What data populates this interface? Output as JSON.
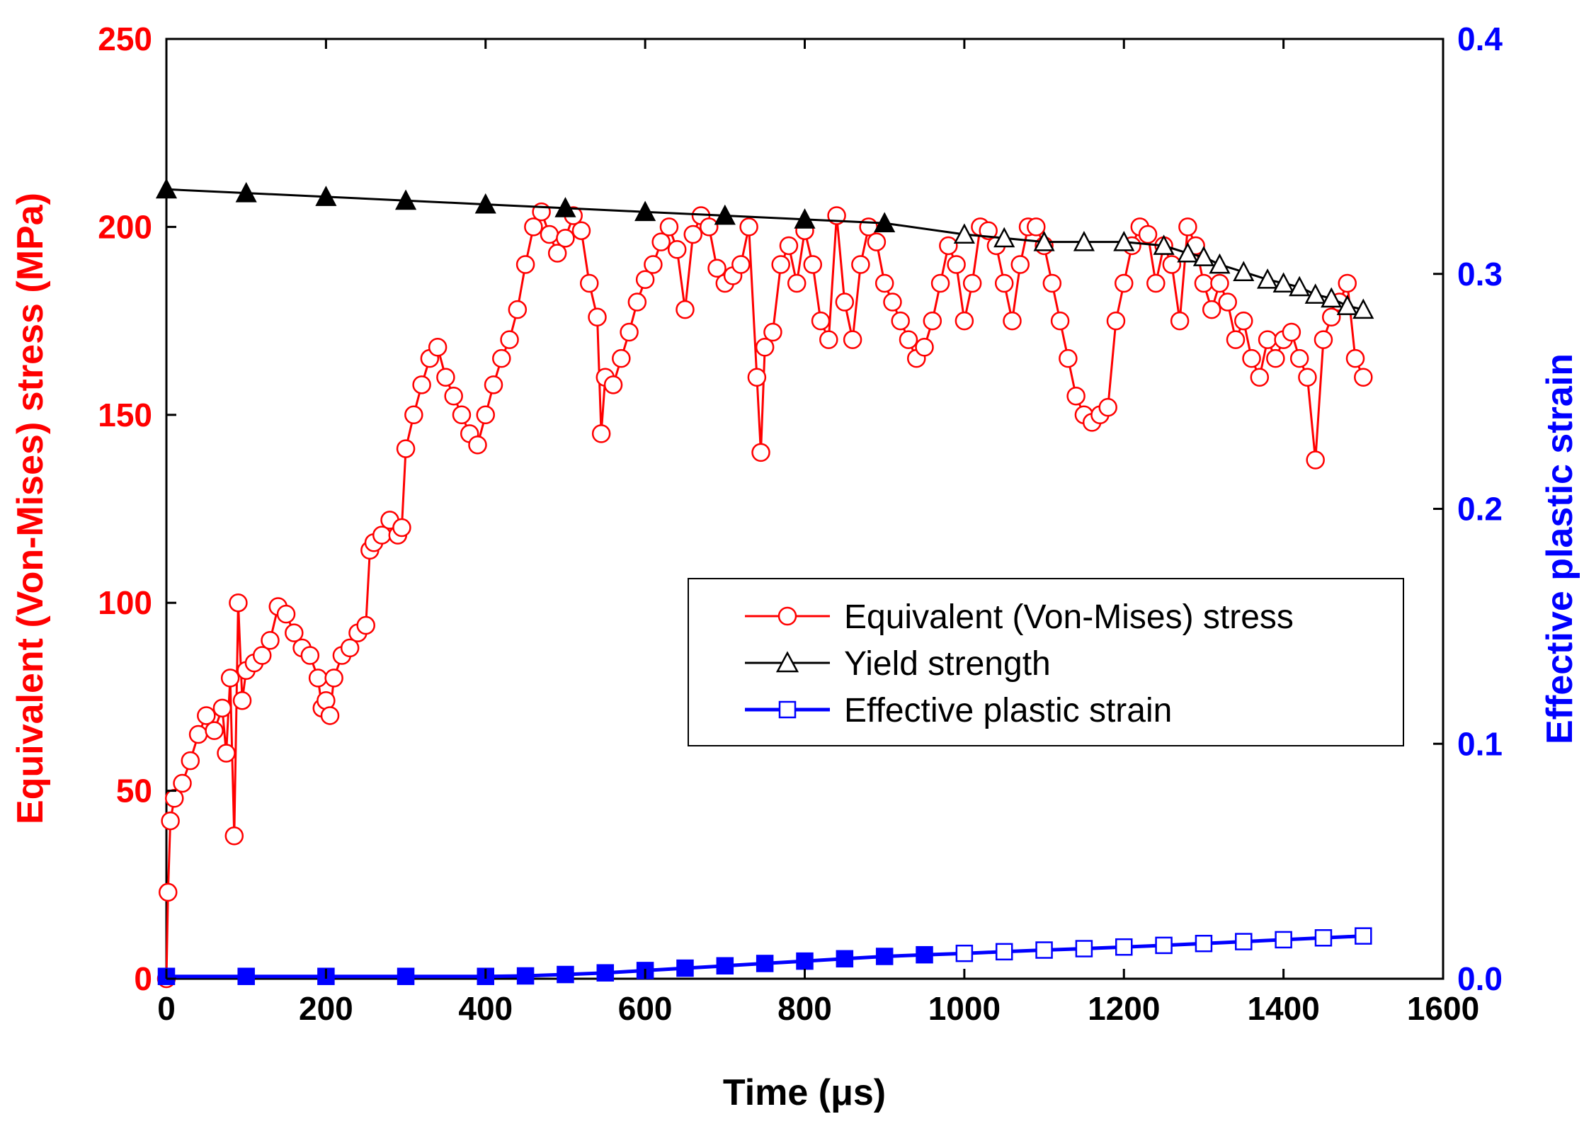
{
  "chart_data": {
    "type": "line",
    "title": "",
    "xlabel": "Time (μs)",
    "ylabel": "Equivalent (Von-Mises) stress (MPa)",
    "y2label": "Effective plastic strain",
    "xlim": [
      0,
      1600
    ],
    "ylim": [
      0,
      250
    ],
    "y2lim": [
      0,
      0.4
    ],
    "x_ticks": [
      "0",
      "200",
      "400",
      "600",
      "800",
      "1000",
      "1200",
      "1400",
      "1600"
    ],
    "y_ticks": [
      "0",
      "50",
      "100",
      "150",
      "200",
      "250"
    ],
    "y2_ticks": [
      "0.0",
      "0.1",
      "0.2",
      "0.3",
      "0.4"
    ],
    "legend_position": "center-right",
    "colors": {
      "stress": "#ff0000",
      "yield": "#000000",
      "strain": "#0000ff",
      "left_axis": "#ff0000",
      "right_axis": "#0000ff"
    },
    "series": [
      {
        "name": "Equivalent (Von-Mises) stress",
        "axis": "left",
        "marker": "circle",
        "x": [
          0,
          2,
          5,
          10,
          20,
          30,
          40,
          50,
          60,
          70,
          75,
          80,
          85,
          90,
          95,
          100,
          110,
          120,
          130,
          140,
          150,
          160,
          170,
          180,
          190,
          195,
          200,
          205,
          210,
          220,
          230,
          240,
          250,
          255,
          260,
          270,
          280,
          290,
          295,
          300,
          310,
          320,
          330,
          340,
          350,
          360,
          370,
          380,
          390,
          400,
          410,
          420,
          430,
          440,
          450,
          460,
          470,
          480,
          490,
          500,
          510,
          520,
          530,
          540,
          545,
          550,
          560,
          570,
          580,
          590,
          600,
          610,
          620,
          630,
          640,
          650,
          660,
          670,
          680,
          690,
          700,
          710,
          720,
          730,
          740,
          745,
          750,
          760,
          770,
          780,
          790,
          800,
          810,
          820,
          830,
          840,
          850,
          860,
          870,
          880,
          890,
          900,
          910,
          920,
          930,
          940,
          950,
          960,
          970,
          980,
          990,
          1000,
          1010,
          1020,
          1030,
          1040,
          1050,
          1060,
          1070,
          1080,
          1090,
          1100,
          1110,
          1120,
          1130,
          1140,
          1150,
          1160,
          1170,
          1180,
          1190,
          1200,
          1210,
          1220,
          1230,
          1240,
          1250,
          1260,
          1270,
          1280,
          1290,
          1300,
          1310,
          1320,
          1330,
          1340,
          1350,
          1360,
          1370,
          1380,
          1390,
          1400,
          1410,
          1420,
          1430,
          1440,
          1450,
          1460,
          1470,
          1480,
          1490,
          1500
        ],
        "y": [
          0,
          23,
          42,
          48,
          52,
          58,
          65,
          70,
          66,
          72,
          60,
          80,
          38,
          100,
          74,
          82,
          84,
          86,
          90,
          99,
          97,
          92,
          88,
          86,
          80,
          72,
          74,
          70,
          80,
          86,
          88,
          92,
          94,
          114,
          116,
          118,
          122,
          118,
          120,
          141,
          150,
          158,
          165,
          168,
          160,
          155,
          150,
          145,
          142,
          150,
          158,
          165,
          170,
          178,
          190,
          200,
          204,
          198,
          193,
          197,
          203,
          199,
          185,
          176,
          145,
          160,
          158,
          165,
          172,
          180,
          186,
          190,
          196,
          200,
          194,
          178,
          198,
          203,
          200,
          189,
          185,
          187,
          190,
          200,
          160,
          140,
          168,
          172,
          190,
          195,
          185,
          199,
          190,
          175,
          170,
          203,
          180,
          170,
          190,
          200,
          196,
          185,
          180,
          175,
          170,
          165,
          168,
          175,
          185,
          195,
          190,
          175,
          185,
          200,
          199,
          195,
          185,
          175,
          190,
          200,
          200,
          195,
          185,
          175,
          165,
          155,
          150,
          148,
          150,
          152,
          175,
          185,
          195,
          200,
          198,
          185,
          195,
          190,
          175,
          200,
          195,
          185,
          178,
          185,
          180,
          170,
          175,
          165,
          160,
          170,
          165,
          170,
          172,
          165,
          160,
          138,
          170,
          176,
          180,
          185,
          165,
          160
        ]
      },
      {
        "name": "Yield strength",
        "axis": "left",
        "marker": "triangle",
        "x": [
          0,
          100,
          200,
          300,
          400,
          500,
          600,
          700,
          800,
          900,
          1000,
          1050,
          1100,
          1150,
          1200,
          1250,
          1280,
          1300,
          1320,
          1350,
          1380,
          1400,
          1420,
          1440,
          1460,
          1480,
          1500
        ],
        "y": [
          210,
          209,
          208,
          207,
          206,
          205,
          204,
          203,
          202,
          201,
          198,
          197,
          196,
          196,
          196,
          195,
          193,
          192,
          190,
          188,
          186,
          185,
          184,
          182,
          181,
          179,
          178
        ]
      },
      {
        "name": "Effective plastic strain",
        "axis": "right",
        "marker": "square",
        "x": [
          0,
          100,
          200,
          300,
          400,
          450,
          500,
          550,
          600,
          650,
          700,
          750,
          800,
          850,
          900,
          950,
          1000,
          1050,
          1100,
          1150,
          1200,
          1250,
          1300,
          1350,
          1400,
          1450,
          1500
        ],
        "y": [
          0.001,
          0.001,
          0.001,
          0.001,
          0.001,
          0.0012,
          0.0018,
          0.0025,
          0.0035,
          0.0045,
          0.0055,
          0.0065,
          0.0075,
          0.0085,
          0.0095,
          0.0102,
          0.0108,
          0.0115,
          0.0122,
          0.0128,
          0.0135,
          0.0142,
          0.015,
          0.0158,
          0.0166,
          0.0174,
          0.0182
        ]
      }
    ]
  }
}
